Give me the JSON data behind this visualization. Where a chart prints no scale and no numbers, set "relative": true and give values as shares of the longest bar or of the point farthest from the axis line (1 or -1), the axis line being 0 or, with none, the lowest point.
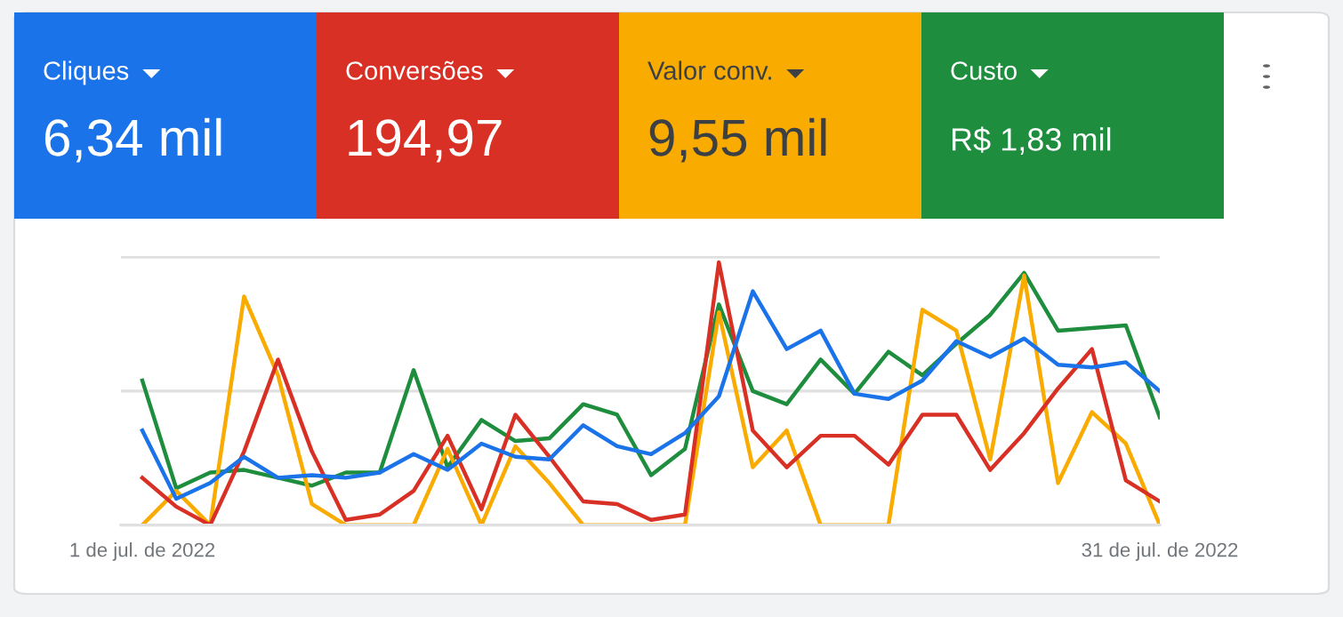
{
  "chart_data": [
    {
      "type": "other",
      "categories": [
        "Cliques",
        "Conversões",
        "Valor conv.",
        "Custo"
      ],
      "annotations": [
        "6,34 mil",
        "194,97",
        "9,55 mil",
        "R$ 1,83 mil"
      ],
      "colors": [
        "#1a73e8",
        "#d93025",
        "#f9ab00",
        "#1e8e3e"
      ]
    },
    {
      "type": "line",
      "relative": true,
      "ref_lines": [
        {
          "axis": "y",
          "value": 0.51,
          "color": "#e0e0e0"
        },
        {
          "axis": "y",
          "value": 1.02,
          "color": "#e0e0e0"
        }
      ],
      "categories": [
        "1 de jul. de 2022",
        null,
        null,
        null,
        null,
        null,
        null,
        null,
        null,
        null,
        null,
        null,
        null,
        null,
        null,
        null,
        null,
        null,
        null,
        null,
        null,
        null,
        null,
        null,
        null,
        null,
        null,
        null,
        null,
        null,
        "31 de jul. de 2022"
      ],
      "series": [
        {
          "color": "#1e8e3e",
          "values": [
            0.55,
            0.14,
            0.2,
            0.21,
            0.18,
            0.15,
            0.2,
            0.2,
            0.59,
            0.22,
            0.4,
            0.32,
            0.33,
            0.46,
            0.42,
            0.19,
            0.29,
            0.84,
            0.51,
            0.46,
            0.63,
            0.5,
            0.66,
            0.57,
            0.69,
            0.8,
            0.96,
            0.74,
            0.75,
            0.76,
            0.41
          ]
        },
        {
          "color": "#f9ab00",
          "values": [
            0,
            0.13,
            0,
            0.87,
            0.57,
            0.08,
            0,
            0,
            0,
            0.29,
            0,
            0.3,
            0.16,
            0,
            0,
            0,
            0,
            0.81,
            0.22,
            0.36,
            0,
            0,
            0,
            0.82,
            0.74,
            0.25,
            0.95,
            0.16,
            0.43,
            0.31,
            0
          ]
        },
        {
          "color": "#d93025",
          "values": [
            0.18,
            0.07,
            0,
            0.28,
            0.63,
            0.28,
            0.02,
            0.04,
            0.13,
            0.34,
            0.06,
            0.42,
            0.26,
            0.09,
            0.08,
            0.02,
            0.04,
            1.0,
            0.36,
            0.22,
            0.34,
            0.34,
            0.23,
            0.42,
            0.42,
            0.21,
            0.35,
            0.52,
            0.67,
            0.17,
            0.09
          ]
        },
        {
          "color": "#1a73e8",
          "values": [
            0.36,
            0.1,
            0.16,
            0.26,
            0.18,
            0.19,
            0.18,
            0.2,
            0.27,
            0.21,
            0.31,
            0.26,
            0.25,
            0.38,
            0.3,
            0.27,
            0.35,
            0.49,
            0.89,
            0.67,
            0.74,
            0.5,
            0.48,
            0.55,
            0.7,
            0.64,
            0.71,
            0.61,
            0.6,
            0.62,
            0.51
          ]
        }
      ]
    }
  ]
}
